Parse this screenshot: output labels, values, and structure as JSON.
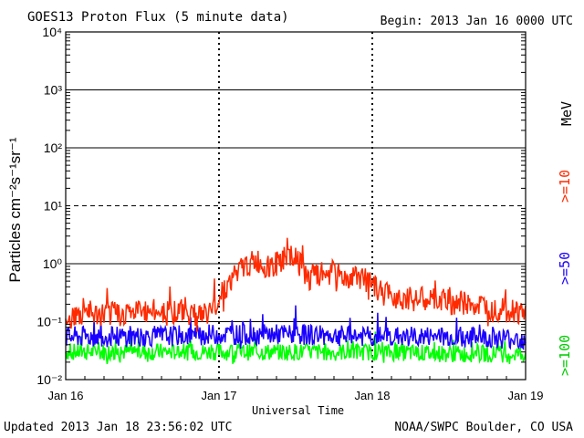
{
  "header": {
    "title": "GOES13 Proton Flux (5 minute data)",
    "begin": "Begin: 2013 Jan 16 0000 UTC"
  },
  "footer": {
    "updated": "Updated 2013 Jan 18 23:56:02 UTC",
    "credit": "NOAA/SWPC Boulder, CO USA"
  },
  "chart_data": {
    "type": "line",
    "title": "GOES13 Proton Flux (5 minute data)",
    "xlabel": "Universal Time",
    "ylabel": "Particles cm⁻²s⁻¹sr⁻¹",
    "yscale": "log",
    "ylim": [
      0.01,
      10000
    ],
    "xlim": [
      0,
      72
    ],
    "x_unit": "hours since 2013 Jan 16 0000 UTC",
    "x_tick_labels": [
      "Jan 16",
      "Jan 17",
      "Jan 18",
      "Jan 19"
    ],
    "x_tick_hours": [
      0,
      24,
      48,
      72
    ],
    "y_tick_labels": [
      "10⁻²",
      "10⁻¹",
      "10⁰",
      "10¹",
      "10²",
      "10³",
      "10⁴"
    ],
    "y_tick_values": [
      0.01,
      0.1,
      1,
      10,
      100,
      1000,
      10000
    ],
    "unit_label": "MeV",
    "series": [
      {
        "name": ">=10",
        "color": "#ff2a00",
        "points": [
          [
            0,
            0.12
          ],
          [
            6,
            0.13
          ],
          [
            12,
            0.15
          ],
          [
            18,
            0.15
          ],
          [
            22,
            0.13
          ],
          [
            24,
            0.25
          ],
          [
            26,
            0.55
          ],
          [
            28,
            0.9
          ],
          [
            30,
            1.1
          ],
          [
            32,
            0.8
          ],
          [
            34,
            1.2
          ],
          [
            36,
            1.25
          ],
          [
            38,
            0.55
          ],
          [
            40,
            0.65
          ],
          [
            42,
            0.7
          ],
          [
            44,
            0.55
          ],
          [
            46,
            0.6
          ],
          [
            48,
            0.4
          ],
          [
            50,
            0.3
          ],
          [
            54,
            0.25
          ],
          [
            60,
            0.22
          ],
          [
            66,
            0.18
          ],
          [
            72,
            0.14
          ]
        ]
      },
      {
        "name": ">=50",
        "color": "#1a00ff",
        "points": [
          [
            0,
            0.055
          ],
          [
            12,
            0.055
          ],
          [
            24,
            0.06
          ],
          [
            36,
            0.06
          ],
          [
            48,
            0.055
          ],
          [
            60,
            0.055
          ],
          [
            72,
            0.05
          ]
        ]
      },
      {
        "name": ">=100",
        "color": "#00ff00",
        "points": [
          [
            0,
            0.03
          ],
          [
            12,
            0.03
          ],
          [
            24,
            0.03
          ],
          [
            36,
            0.03
          ],
          [
            48,
            0.03
          ],
          [
            60,
            0.028
          ],
          [
            72,
            0.028
          ]
        ]
      }
    ],
    "legend": [
      "MeV",
      ">=10",
      ">=50",
      ">=100"
    ],
    "legend_position": "right, vertical",
    "grid": "solid at each decade, dashed at 10¹; dashed vertical at day boundaries"
  }
}
